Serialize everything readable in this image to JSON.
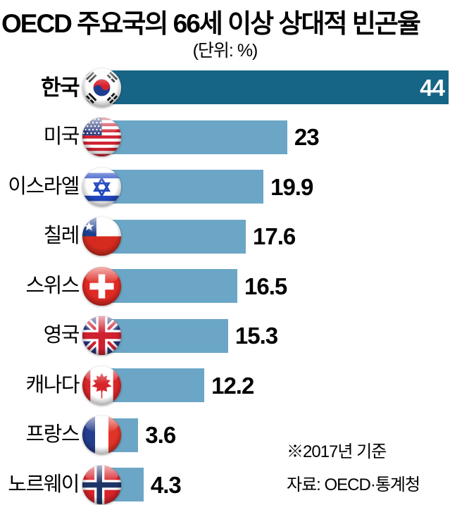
{
  "title": "OECD 주요국의 66세 이상 상대적 빈곤율",
  "unit_label": "(단위: %)",
  "footnote": "※2017년 기준",
  "source": "자료: OECD·통계청",
  "colors": {
    "background": "#ffffff",
    "highlight_bar": "#176586",
    "bar": "#6ba6c6",
    "text": "#000000",
    "highlight_value_text": "#ffffff"
  },
  "chart_data": {
    "type": "bar",
    "orientation": "horizontal",
    "title": "OECD 주요국의 66세 이상 상대적 빈곤율",
    "unit": "%",
    "categories": [
      "한국",
      "미국",
      "이스라엘",
      "칠레",
      "스위스",
      "영국",
      "캐나다",
      "프랑스",
      "노르웨이"
    ],
    "values": [
      44,
      23,
      19.9,
      17.6,
      16.5,
      15.3,
      12.2,
      3.6,
      4.3
    ],
    "value_labels": [
      "44",
      "23",
      "19.9",
      "17.6",
      "16.5",
      "15.3",
      "12.2",
      "3.6",
      "4.3"
    ],
    "flags": [
      "south-korea",
      "usa",
      "israel",
      "chile",
      "switzerland",
      "uk",
      "canada",
      "france",
      "norway"
    ],
    "highlighted_index": 0,
    "xlim": [
      0,
      44
    ],
    "legend": "none",
    "grid": "off",
    "footnote": "※2017년 기준",
    "source": "자료: OECD·통계청"
  }
}
